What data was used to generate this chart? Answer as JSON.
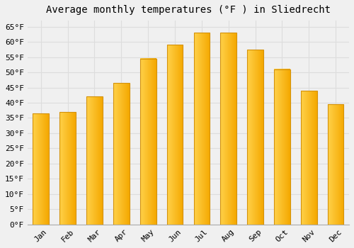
{
  "title": "Average monthly temperatures (°F ) in Sliedrecht",
  "months": [
    "Jan",
    "Feb",
    "Mar",
    "Apr",
    "May",
    "Jun",
    "Jul",
    "Aug",
    "Sep",
    "Oct",
    "Nov",
    "Dec"
  ],
  "values": [
    36.5,
    37.0,
    42.0,
    46.5,
    54.5,
    59.0,
    63.0,
    63.0,
    57.5,
    51.0,
    44.0,
    39.5
  ],
  "bar_color_left": "#FFD04A",
  "bar_color_right": "#F5A800",
  "bar_color_edge": "#D4920A",
  "ylim": [
    0,
    67
  ],
  "yticks": [
    0,
    5,
    10,
    15,
    20,
    25,
    30,
    35,
    40,
    45,
    50,
    55,
    60,
    65
  ],
  "ytick_labels": [
    "0°F",
    "5°F",
    "10°F",
    "15°F",
    "20°F",
    "25°F",
    "30°F",
    "35°F",
    "40°F",
    "45°F",
    "50°F",
    "55°F",
    "60°F",
    "65°F"
  ],
  "background_color": "#f0f0f0",
  "grid_color": "#dddddd",
  "title_fontsize": 10,
  "tick_fontsize": 8,
  "font_family": "monospace",
  "bar_width": 0.6,
  "figsize": [
    5.0,
    3.5
  ],
  "dpi": 100
}
